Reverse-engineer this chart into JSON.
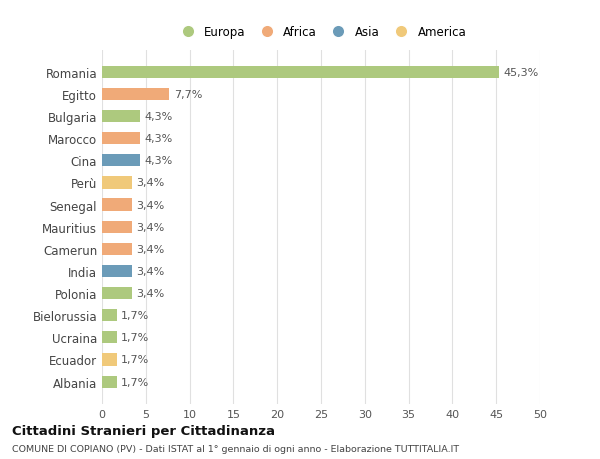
{
  "categories": [
    "Romania",
    "Egitto",
    "Bulgaria",
    "Marocco",
    "Cina",
    "Perù",
    "Senegal",
    "Mauritius",
    "Camerun",
    "India",
    "Polonia",
    "Bielorussia",
    "Ucraina",
    "Ecuador",
    "Albania"
  ],
  "values": [
    45.3,
    7.7,
    4.3,
    4.3,
    4.3,
    3.4,
    3.4,
    3.4,
    3.4,
    3.4,
    3.4,
    1.7,
    1.7,
    1.7,
    1.7
  ],
  "colors": [
    "#adc97e",
    "#f0aa78",
    "#adc97e",
    "#f0aa78",
    "#6b9bb8",
    "#f0c97a",
    "#f0aa78",
    "#f0aa78",
    "#f0aa78",
    "#6b9bb8",
    "#adc97e",
    "#adc97e",
    "#adc97e",
    "#f0c97a",
    "#adc97e"
  ],
  "labels": [
    "45,3%",
    "7,7%",
    "4,3%",
    "4,3%",
    "4,3%",
    "3,4%",
    "3,4%",
    "3,4%",
    "3,4%",
    "3,4%",
    "3,4%",
    "1,7%",
    "1,7%",
    "1,7%",
    "1,7%"
  ],
  "legend": [
    {
      "label": "Europa",
      "color": "#adc97e"
    },
    {
      "label": "Africa",
      "color": "#f0aa78"
    },
    {
      "label": "Asia",
      "color": "#6b9bb8"
    },
    {
      "label": "America",
      "color": "#f0c97a"
    }
  ],
  "xlim": [
    0,
    50
  ],
  "xticks": [
    0,
    5,
    10,
    15,
    20,
    25,
    30,
    35,
    40,
    45,
    50
  ],
  "title": "Cittadini Stranieri per Cittadinanza",
  "subtitle": "COMUNE DI COPIANO (PV) - Dati ISTAT al 1° gennaio di ogni anno - Elaborazione TUTTITALIA.IT",
  "background_color": "#ffffff",
  "grid_color": "#e0e0e0",
  "bar_height": 0.55
}
